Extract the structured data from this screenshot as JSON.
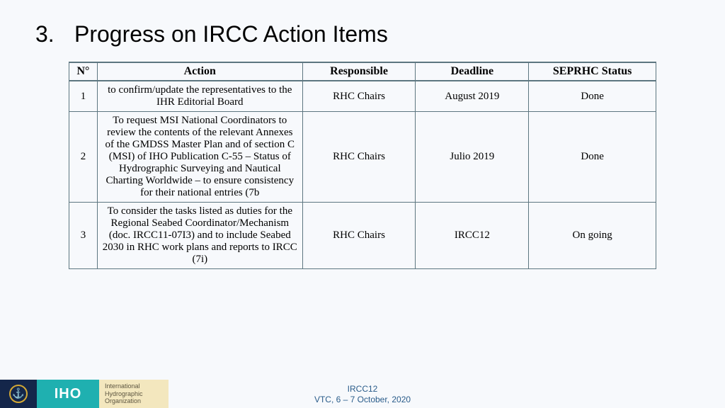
{
  "title_number": "3.",
  "title_text": "Progress on IRCC Action Items",
  "table": {
    "columns": [
      "N°",
      "Action",
      "Responsible",
      "Deadline",
      "SEPRHC Status"
    ],
    "rows": [
      {
        "n": "1",
        "action": "to confirm/update the representatives to the IHR Editorial Board",
        "responsible": "RHC Chairs",
        "deadline": "August 2019",
        "status": "Done"
      },
      {
        "n": "2",
        "action": "To request MSI National Coordinators to review the contents of the relevant Annexes of the GMDSS Master Plan and of section C (MSI) of IHO Publication C-55 – Status of Hydrographic Surveying and Nautical Charting Worldwide – to ensure consistency for their national entries (7b",
        "responsible": "RHC Chairs",
        "deadline": "Julio 2019",
        "status": "Done"
      },
      {
        "n": "3",
        "action": "To consider the tasks listed as duties for the Regional Seabed Coordinator/Mechanism (doc. IRCC11-07I3) and to include Seabed 2030 in RHC work plans and reports to IRCC\n(7i)",
        "responsible": "RHC Chairs",
        "deadline": "IRCC12",
        "status": "On going"
      }
    ]
  },
  "logo": {
    "iho": "IHO",
    "org_line1": "International",
    "org_line2": "Hydrographic",
    "org_line3": "Organization"
  },
  "footer": {
    "line1": "IRCC12",
    "line2": "VTC, 6 – 7 October, 2020"
  },
  "colors": {
    "page_bg": "#f7f9fc",
    "border": "#5d7680",
    "navy": "#14264a",
    "teal": "#1fb0b0",
    "cream": "#f3e7be",
    "gold": "#d4a935",
    "footer_text": "#2a5c8a"
  }
}
